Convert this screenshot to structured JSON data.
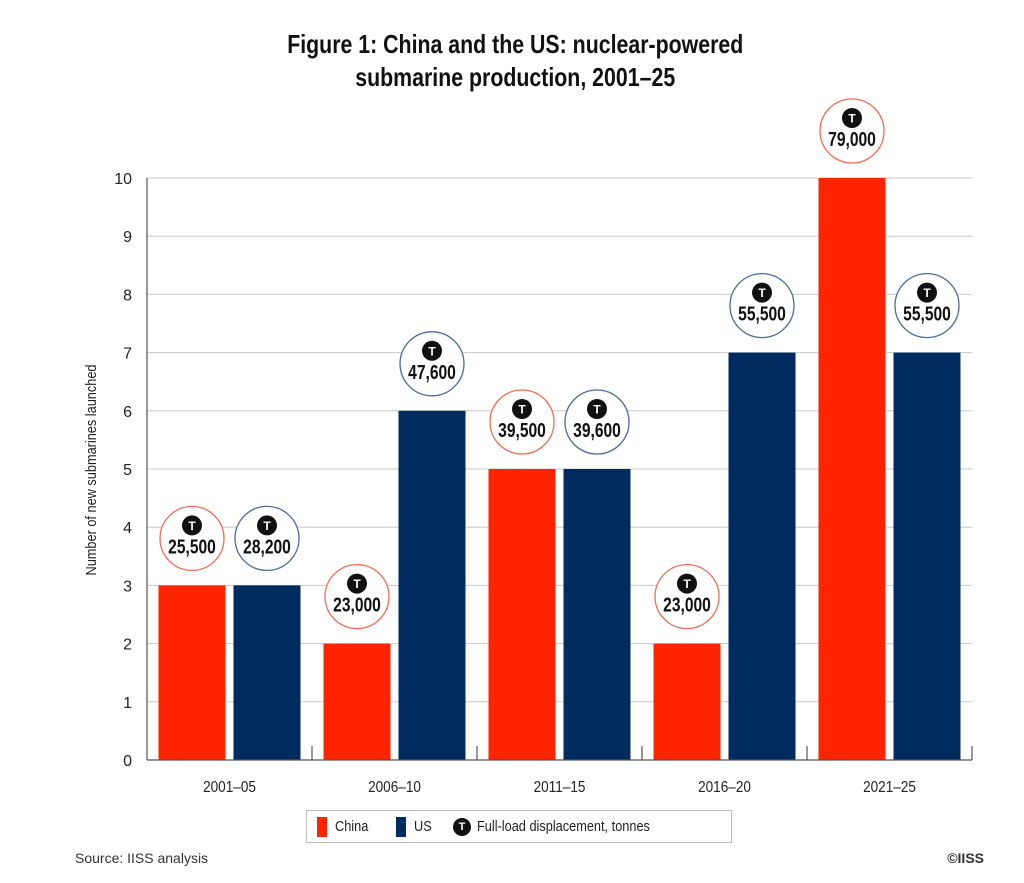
{
  "chart_data": {
    "type": "bar",
    "title": "Figure 1: China and the US: nuclear-powered submarine production, 2001–25",
    "title_lines": [
      "Figure 1: China and the US: nuclear-powered",
      "submarine production, 2001–25"
    ],
    "xlabel": "",
    "ylabel": "Number of new submarines launched",
    "ylim": [
      0,
      10
    ],
    "yticks": [
      0,
      1,
      2,
      3,
      4,
      5,
      6,
      7,
      8,
      9,
      10
    ],
    "grid": true,
    "categories": [
      "2001–05",
      "2006–10",
      "2011–15",
      "2016–20",
      "2021–25"
    ],
    "series": [
      {
        "name": "China",
        "color": "#ff2400",
        "values": [
          3,
          2,
          5,
          2,
          10
        ],
        "displacement_labels": [
          "25,500",
          "23,000",
          "39,500",
          "23,000",
          "79,000"
        ]
      },
      {
        "name": "US",
        "color": "#002b5f",
        "values": [
          3,
          6,
          5,
          7,
          7
        ],
        "displacement_labels": [
          "28,200",
          "47,600",
          "39,600",
          "55,500",
          "55,500"
        ]
      }
    ],
    "legend": {
      "placement": "bottom",
      "entries": [
        "China",
        "US",
        "Full-load displacement, tonnes"
      ],
      "marker_letter": "T"
    },
    "annotation_badge_letter": "T"
  },
  "footer": {
    "source": "Source: IISS analysis",
    "copyright": "©IISS"
  }
}
